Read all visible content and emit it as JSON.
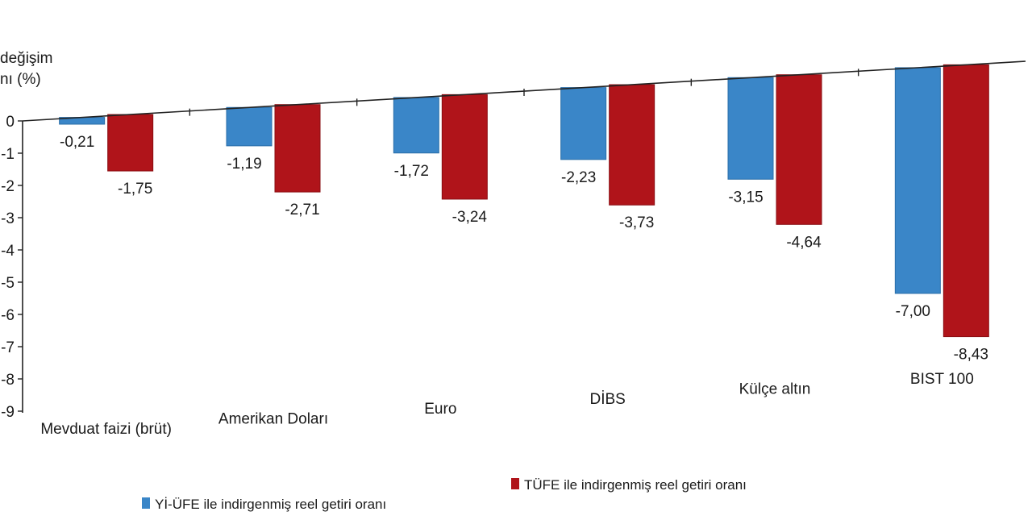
{
  "chart_data": {
    "type": "bar",
    "ylabel_line1": "değişim",
    "ylabel_line2": "nı (%)",
    "ylim": [
      -9,
      0
    ],
    "yticks": [
      0,
      -1,
      -2,
      -3,
      -4,
      -5,
      -6,
      -7,
      -8,
      -9
    ],
    "categories": [
      "Mevduat faizi (brüt)",
      "Amerikan Doları",
      "Euro",
      "DİBS",
      "Külçe altın",
      "BIST 100"
    ],
    "series": [
      {
        "name": "Yİ-ÜFE ile indirgenmiş reel getiri oranı",
        "color": "#3a86c8",
        "values": [
          -0.21,
          -1.19,
          -1.72,
          -2.23,
          -3.15,
          -7.0
        ],
        "labels": [
          "-0,21",
          "-1,19",
          "-1,72",
          "-2,23",
          "-3,15",
          "-7,00"
        ]
      },
      {
        "name": "TÜFE ile indirgenmiş reel getiri oranı",
        "color": "#b0141a",
        "values": [
          -1.75,
          -2.71,
          -3.24,
          -3.73,
          -4.64,
          -8.43
        ],
        "labels": [
          "-1,75",
          "-2,71",
          "-3,24",
          "-3,73",
          "-4,64",
          "-8,43"
        ]
      }
    ],
    "grid": false,
    "legend_position": "bottom"
  }
}
